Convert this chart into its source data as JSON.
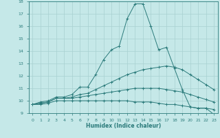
{
  "xlabel": "Humidex (Indice chaleur)",
  "bg_color": "#c5e8e8",
  "line_color": "#2a7a7a",
  "grid_color": "#a8d0d0",
  "xlim": [
    -0.5,
    23.5
  ],
  "ylim": [
    9,
    18
  ],
  "xticks": [
    0,
    1,
    2,
    3,
    4,
    5,
    6,
    7,
    8,
    9,
    10,
    11,
    12,
    13,
    14,
    15,
    16,
    17,
    18,
    19,
    20,
    21,
    22,
    23
  ],
  "yticks": [
    9,
    10,
    11,
    12,
    13,
    14,
    15,
    16,
    17,
    18
  ],
  "lines": [
    {
      "x": [
        0,
        1,
        2,
        3,
        4,
        5,
        6,
        7,
        8,
        9,
        10,
        11,
        12,
        13,
        14,
        15,
        16,
        17,
        18,
        19,
        20,
        21,
        22,
        23
      ],
      "y": [
        9.7,
        9.9,
        10.0,
        10.3,
        10.3,
        10.5,
        11.1,
        11.1,
        12.1,
        13.3,
        14.1,
        14.4,
        16.6,
        17.8,
        17.8,
        16.0,
        14.1,
        14.3,
        12.6,
        10.9,
        9.5,
        9.4,
        9.4,
        8.9
      ]
    },
    {
      "x": [
        0,
        1,
        2,
        3,
        4,
        5,
        6,
        7,
        8,
        9,
        10,
        11,
        12,
        13,
        14,
        15,
        16,
        17,
        18,
        19,
        20,
        21,
        22,
        23
      ],
      "y": [
        9.7,
        9.8,
        9.9,
        10.2,
        10.2,
        10.3,
        10.5,
        10.6,
        10.9,
        11.2,
        11.5,
        11.8,
        12.1,
        12.3,
        12.5,
        12.6,
        12.7,
        12.8,
        12.7,
        12.5,
        12.1,
        11.7,
        11.3,
        10.9
      ]
    },
    {
      "x": [
        0,
        1,
        2,
        3,
        4,
        5,
        6,
        7,
        8,
        9,
        10,
        11,
        12,
        13,
        14,
        15,
        16,
        17,
        18,
        19,
        20,
        21,
        22,
        23
      ],
      "y": [
        9.7,
        9.8,
        9.9,
        10.2,
        10.2,
        10.2,
        10.3,
        10.4,
        10.5,
        10.6,
        10.7,
        10.8,
        10.9,
        11.0,
        11.0,
        11.0,
        11.0,
        10.9,
        10.8,
        10.7,
        10.5,
        10.3,
        10.1,
        9.9
      ]
    },
    {
      "x": [
        0,
        1,
        2,
        3,
        4,
        5,
        6,
        7,
        8,
        9,
        10,
        11,
        12,
        13,
        14,
        15,
        16,
        17,
        18,
        19,
        20,
        21,
        22,
        23
      ],
      "y": [
        9.7,
        9.7,
        9.8,
        10.0,
        10.0,
        10.0,
        10.0,
        10.0,
        10.0,
        10.0,
        10.0,
        10.0,
        10.0,
        9.9,
        9.9,
        9.9,
        9.8,
        9.7,
        9.7,
        9.6,
        9.5,
        9.4,
        9.4,
        9.3
      ]
    }
  ]
}
